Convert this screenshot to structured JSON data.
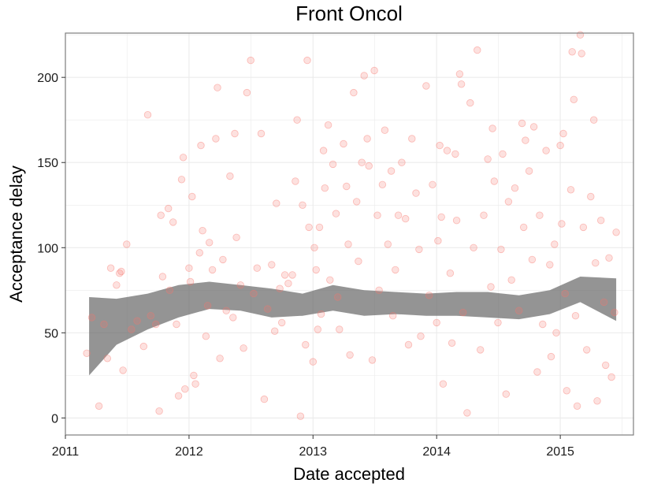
{
  "chart_data": {
    "type": "scatter",
    "title": "Front Oncol",
    "xlabel": "Date accepted",
    "ylabel": "Acceptance delay",
    "x_axis": {
      "kind": "date",
      "xlim": [
        "2011-01-01",
        "2015-08-05"
      ],
      "ticks": [
        "2011-01-01",
        "2012-01-01",
        "2013-01-01",
        "2014-01-01",
        "2015-01-01"
      ],
      "tick_labels": [
        "2011",
        "2012",
        "2013",
        "2014",
        "2015"
      ]
    },
    "y_axis": {
      "ylim": [
        -10,
        226
      ],
      "ticks": [
        0,
        50,
        100,
        150,
        200
      ],
      "tick_labels": [
        "0",
        "50",
        "100",
        "150",
        "200"
      ]
    },
    "grid": true,
    "legend": "none",
    "colors": {
      "points": "#f8766d",
      "smooth_band": "#666666",
      "panel_border": "#7f7f7f",
      "grid": "#ebebeb"
    },
    "series": [
      {
        "kind": "points",
        "points": [
          [
            "2011-03-05",
            38
          ],
          [
            "2011-03-20",
            59
          ],
          [
            "2011-04-10",
            7
          ],
          [
            "2011-04-25",
            55
          ],
          [
            "2011-05-05",
            35
          ],
          [
            "2011-05-15",
            88
          ],
          [
            "2011-06-01",
            78
          ],
          [
            "2011-06-10",
            85
          ],
          [
            "2011-06-15",
            86
          ],
          [
            "2011-06-20",
            28
          ],
          [
            "2011-07-01",
            102
          ],
          [
            "2011-07-15",
            52
          ],
          [
            "2011-08-01",
            57
          ],
          [
            "2011-08-20",
            42
          ],
          [
            "2011-09-01",
            178
          ],
          [
            "2011-09-10",
            60
          ],
          [
            "2011-09-25",
            55
          ],
          [
            "2011-10-05",
            4
          ],
          [
            "2011-10-10",
            119
          ],
          [
            "2011-10-15",
            83
          ],
          [
            "2011-11-01",
            123
          ],
          [
            "2011-11-05",
            75
          ],
          [
            "2011-11-15",
            115
          ],
          [
            "2011-11-25",
            55
          ],
          [
            "2011-12-01",
            13
          ],
          [
            "2011-12-10",
            140
          ],
          [
            "2011-12-15",
            153
          ],
          [
            "2011-12-20",
            17
          ],
          [
            "2012-01-01",
            88
          ],
          [
            "2012-01-05",
            80
          ],
          [
            "2012-01-10",
            130
          ],
          [
            "2012-01-15",
            25
          ],
          [
            "2012-01-20",
            20
          ],
          [
            "2012-02-01",
            97
          ],
          [
            "2012-02-05",
            160
          ],
          [
            "2012-02-10",
            110
          ],
          [
            "2012-02-20",
            48
          ],
          [
            "2012-02-25",
            66
          ],
          [
            "2012-03-01",
            103
          ],
          [
            "2012-03-10",
            87
          ],
          [
            "2012-03-20",
            164
          ],
          [
            "2012-03-25",
            194
          ],
          [
            "2012-04-01",
            35
          ],
          [
            "2012-04-10",
            93
          ],
          [
            "2012-04-20",
            63
          ],
          [
            "2012-05-01",
            142
          ],
          [
            "2012-05-10",
            59
          ],
          [
            "2012-05-15",
            167
          ],
          [
            "2012-05-20",
            106
          ],
          [
            "2012-06-01",
            78
          ],
          [
            "2012-06-10",
            41
          ],
          [
            "2012-06-20",
            191
          ],
          [
            "2012-07-01",
            210
          ],
          [
            "2012-07-10",
            73
          ],
          [
            "2012-07-20",
            88
          ],
          [
            "2012-08-01",
            167
          ],
          [
            "2012-08-10",
            11
          ],
          [
            "2012-08-20",
            64
          ],
          [
            "2012-09-01",
            90
          ],
          [
            "2012-09-10",
            51
          ],
          [
            "2012-09-15",
            126
          ],
          [
            "2012-09-25",
            76
          ],
          [
            "2012-10-01",
            56
          ],
          [
            "2012-10-10",
            84
          ],
          [
            "2012-10-20",
            79
          ],
          [
            "2012-11-01",
            84
          ],
          [
            "2012-11-10",
            139
          ],
          [
            "2012-11-15",
            175
          ],
          [
            "2012-11-25",
            1
          ],
          [
            "2012-12-01",
            125
          ],
          [
            "2012-12-10",
            43
          ],
          [
            "2012-12-15",
            210
          ],
          [
            "2012-12-20",
            112
          ],
          [
            "2013-01-01",
            33
          ],
          [
            "2013-01-05",
            100
          ],
          [
            "2013-01-10",
            87
          ],
          [
            "2013-01-15",
            52
          ],
          [
            "2013-01-20",
            112
          ],
          [
            "2013-01-25",
            61
          ],
          [
            "2013-02-01",
            157
          ],
          [
            "2013-02-05",
            135
          ],
          [
            "2013-02-15",
            172
          ],
          [
            "2013-02-20",
            81
          ],
          [
            "2013-03-01",
            149
          ],
          [
            "2013-03-10",
            120
          ],
          [
            "2013-03-15",
            71
          ],
          [
            "2013-03-20",
            52
          ],
          [
            "2013-04-01",
            161
          ],
          [
            "2013-04-10",
            136
          ],
          [
            "2013-04-15",
            102
          ],
          [
            "2013-04-20",
            37
          ],
          [
            "2013-05-01",
            191
          ],
          [
            "2013-05-10",
            127
          ],
          [
            "2013-05-15",
            92
          ],
          [
            "2013-05-25",
            150
          ],
          [
            "2013-06-01",
            201
          ],
          [
            "2013-06-10",
            164
          ],
          [
            "2013-06-15",
            148
          ],
          [
            "2013-06-25",
            34
          ],
          [
            "2013-07-01",
            204
          ],
          [
            "2013-07-10",
            119
          ],
          [
            "2013-07-15",
            75
          ],
          [
            "2013-07-25",
            137
          ],
          [
            "2013-08-01",
            169
          ],
          [
            "2013-08-10",
            102
          ],
          [
            "2013-08-20",
            145
          ],
          [
            "2013-08-25",
            60
          ],
          [
            "2013-09-01",
            87
          ],
          [
            "2013-09-10",
            119
          ],
          [
            "2013-09-20",
            150
          ],
          [
            "2013-10-01",
            117
          ],
          [
            "2013-10-10",
            43
          ],
          [
            "2013-10-20",
            164
          ],
          [
            "2013-11-01",
            132
          ],
          [
            "2013-11-10",
            99
          ],
          [
            "2013-11-15",
            48
          ],
          [
            "2013-12-01",
            195
          ],
          [
            "2013-12-10",
            72
          ],
          [
            "2013-12-20",
            137
          ],
          [
            "2014-01-01",
            56
          ],
          [
            "2014-01-05",
            104
          ],
          [
            "2014-01-10",
            160
          ],
          [
            "2014-01-15",
            118
          ],
          [
            "2014-01-20",
            20
          ],
          [
            "2014-02-01",
            157
          ],
          [
            "2014-02-10",
            85
          ],
          [
            "2014-02-15",
            44
          ],
          [
            "2014-02-25",
            155
          ],
          [
            "2014-03-01",
            116
          ],
          [
            "2014-03-10",
            202
          ],
          [
            "2014-03-15",
            196
          ],
          [
            "2014-03-20",
            62
          ],
          [
            "2014-04-01",
            3
          ],
          [
            "2014-04-10",
            185
          ],
          [
            "2014-04-20",
            100
          ],
          [
            "2014-05-01",
            216
          ],
          [
            "2014-05-10",
            40
          ],
          [
            "2014-05-20",
            119
          ],
          [
            "2014-06-01",
            152
          ],
          [
            "2014-06-10",
            77
          ],
          [
            "2014-06-15",
            170
          ],
          [
            "2014-06-20",
            139
          ],
          [
            "2014-07-01",
            56
          ],
          [
            "2014-07-10",
            99
          ],
          [
            "2014-07-15",
            155
          ],
          [
            "2014-07-25",
            14
          ],
          [
            "2014-08-01",
            127
          ],
          [
            "2014-08-10",
            81
          ],
          [
            "2014-08-20",
            135
          ],
          [
            "2014-09-01",
            63
          ],
          [
            "2014-09-10",
            173
          ],
          [
            "2014-09-15",
            112
          ],
          [
            "2014-09-20",
            163
          ],
          [
            "2014-10-01",
            145
          ],
          [
            "2014-10-10",
            93
          ],
          [
            "2014-10-15",
            171
          ],
          [
            "2014-10-25",
            27
          ],
          [
            "2014-11-01",
            119
          ],
          [
            "2014-11-10",
            55
          ],
          [
            "2014-11-20",
            157
          ],
          [
            "2014-12-01",
            90
          ],
          [
            "2014-12-05",
            36
          ],
          [
            "2014-12-15",
            102
          ],
          [
            "2014-12-20",
            50
          ],
          [
            "2015-01-01",
            160
          ],
          [
            "2015-01-05",
            114
          ],
          [
            "2015-01-10",
            167
          ],
          [
            "2015-01-15",
            73
          ],
          [
            "2015-01-20",
            16
          ],
          [
            "2015-02-01",
            134
          ],
          [
            "2015-02-05",
            215
          ],
          [
            "2015-02-10",
            187
          ],
          [
            "2015-02-15",
            60
          ],
          [
            "2015-02-20",
            7
          ],
          [
            "2015-03-01",
            225
          ],
          [
            "2015-03-05",
            214
          ],
          [
            "2015-03-10",
            112
          ],
          [
            "2015-03-20",
            40
          ],
          [
            "2015-04-01",
            130
          ],
          [
            "2015-04-10",
            175
          ],
          [
            "2015-04-15",
            91
          ],
          [
            "2015-04-20",
            10
          ],
          [
            "2015-05-01",
            116
          ],
          [
            "2015-05-10",
            68
          ],
          [
            "2015-05-15",
            31
          ],
          [
            "2015-05-25",
            94
          ],
          [
            "2015-06-01",
            24
          ],
          [
            "2015-06-10",
            62
          ],
          [
            "2015-06-15",
            109
          ]
        ]
      },
      {
        "kind": "loess-band",
        "x": [
          "2011-03-12",
          "2011-06-01",
          "2011-09-01",
          "2011-12-01",
          "2012-03-01",
          "2012-06-01",
          "2012-09-01",
          "2012-12-01",
          "2013-03-01",
          "2013-06-01",
          "2013-09-01",
          "2013-12-01",
          "2014-03-01",
          "2014-06-01",
          "2014-09-01",
          "2014-12-01",
          "2015-03-01",
          "2015-06-15"
        ],
        "lower": [
          25,
          43,
          52,
          59,
          64,
          63,
          59,
          60,
          63,
          60,
          61,
          60,
          60,
          59,
          58,
          61,
          68,
          57
        ],
        "upper": [
          71,
          70,
          73,
          78,
          80,
          78,
          76,
          73,
          78,
          75,
          74,
          73,
          74,
          74,
          72,
          75,
          83,
          82
        ]
      }
    ]
  }
}
